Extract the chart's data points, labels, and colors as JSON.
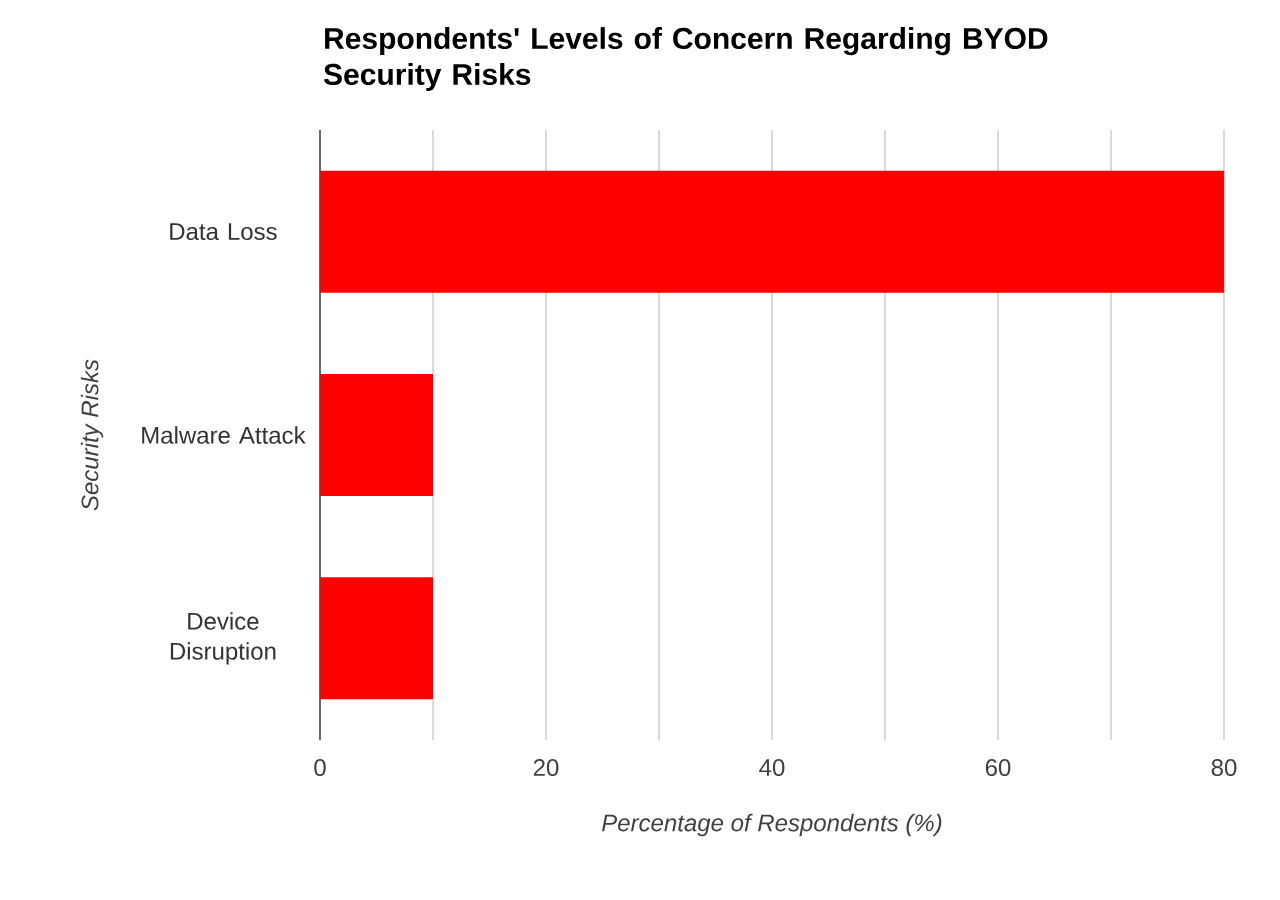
{
  "chart_data": {
    "type": "bar",
    "orientation": "horizontal",
    "title": "Respondents' Levels of Concern Regarding BYOD Security Risks",
    "xlabel": "Percentage of Respondents (%)",
    "ylabel": "Security Risks",
    "categories": [
      "Data Loss",
      "Malware Attack",
      "Device Disruption"
    ],
    "values": [
      80,
      10,
      10
    ],
    "color": "#ff0000",
    "xlim": [
      0,
      80
    ],
    "xticks": [
      0,
      {
        "value": 10,
        "label": null
      },
      20,
      {
        "value": 30,
        "label": null
      },
      40,
      {
        "value": 50,
        "label": null
      },
      60,
      {
        "value": 70,
        "label": null
      },
      80
    ],
    "grid": "x"
  }
}
